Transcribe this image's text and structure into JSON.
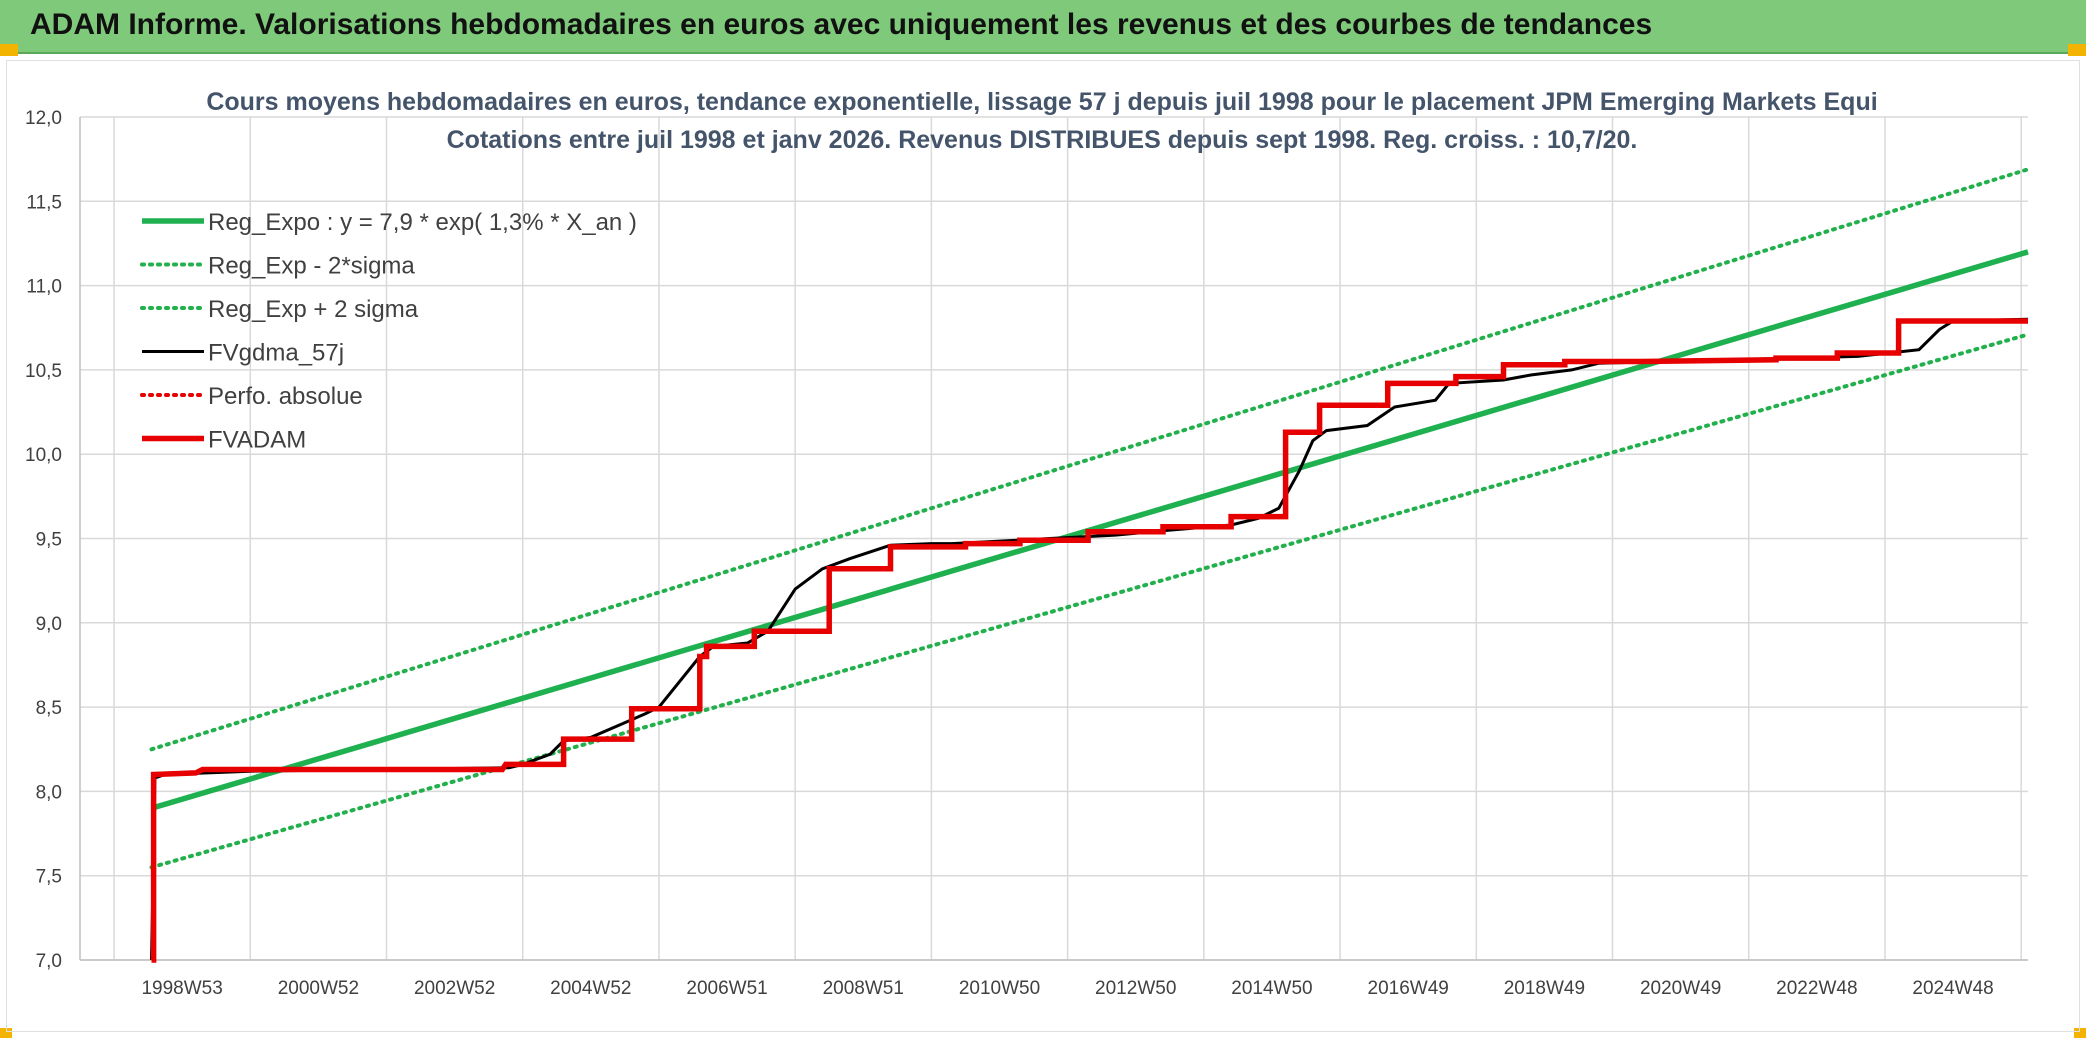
{
  "header": {
    "title": "ADAM Informe. Valorisations hebdomadaires en euros avec uniquement les revenus et des courbes de tendances"
  },
  "colors": {
    "header_bg": "#7fc97a",
    "trend_green": "#1fb050",
    "band_green": "#22b04c",
    "fv_black": "#000000",
    "adam_red": "#e60000",
    "perfo_red": "#e60000",
    "grid": "#d9d9d9"
  },
  "chart_data": {
    "type": "line",
    "title": [
      "Cours moyens hebdomadaires en euros, tendance exponentielle, lissage 57 j depuis juil 1998 pour le placement JPM Emerging Markets Equi",
      "Cotations entre juil 1998 et janv 2026. Revenus DISTRIBUES depuis sept 1998. Reg. croiss. : 10,7/20."
    ],
    "xlabel": "",
    "ylabel": "",
    "ylim": [
      7.0,
      12.0
    ],
    "xlim": [
      1997.5,
      2026.1
    ],
    "grid": true,
    "legend_position": "top-left",
    "y_ticks": [
      {
        "value": 7.0,
        "label": "7,0"
      },
      {
        "value": 7.5,
        "label": "7,5"
      },
      {
        "value": 8.0,
        "label": "8,0"
      },
      {
        "value": 8.5,
        "label": "8,5"
      },
      {
        "value": 9.0,
        "label": "9,0"
      },
      {
        "value": 9.5,
        "label": "9,5"
      },
      {
        "value": 10.0,
        "label": "10,0"
      },
      {
        "value": 10.5,
        "label": "10,5"
      },
      {
        "value": 11.0,
        "label": "11,0"
      },
      {
        "value": 11.5,
        "label": "11,5"
      },
      {
        "value": 12.0,
        "label": "12,0"
      }
    ],
    "x_ticks": [
      {
        "value": 1999.0,
        "label": "1998W53"
      },
      {
        "value": 2001.0,
        "label": "2000W52"
      },
      {
        "value": 2003.0,
        "label": "2002W52"
      },
      {
        "value": 2005.0,
        "label": "2004W52"
      },
      {
        "value": 2007.0,
        "label": "2006W51"
      },
      {
        "value": 2009.0,
        "label": "2008W51"
      },
      {
        "value": 2011.0,
        "label": "2010W50"
      },
      {
        "value": 2013.0,
        "label": "2012W50"
      },
      {
        "value": 2015.0,
        "label": "2014W50"
      },
      {
        "value": 2017.0,
        "label": "2016W49"
      },
      {
        "value": 2019.0,
        "label": "2018W49"
      },
      {
        "value": 2021.0,
        "label": "2020W49"
      },
      {
        "value": 2023.0,
        "label": "2022W48"
      },
      {
        "value": 2025.0,
        "label": "2024W48"
      }
    ],
    "x_minor_ticks": [
      1998.0,
      2000.0,
      2002.0,
      2004.0,
      2006.0,
      2008.0,
      2010.0,
      2012.0,
      2014.0,
      2016.0,
      2018.0,
      2020.0,
      2022.0,
      2024.0,
      2026.0
    ],
    "series": [
      {
        "name": "Reg_Expo : y = 7,9 * exp( 1,3% *  X_an )",
        "style": "solid-thick",
        "color": "#1fb050",
        "x": [
          1998.55,
          2026.1
        ],
        "y": [
          7.9,
          11.2
        ]
      },
      {
        "name": "Reg_Exp - 2*sigma",
        "style": "dotted",
        "color": "#22b04c",
        "x": [
          1998.55,
          2026.1
        ],
        "y": [
          7.55,
          10.71
        ]
      },
      {
        "name": "Reg_Exp + 2 sigma",
        "style": "dotted",
        "color": "#22b04c",
        "x": [
          1998.55,
          2026.1
        ],
        "y": [
          8.25,
          11.69
        ]
      },
      {
        "name": "FVgdma_57j",
        "style": "solid",
        "color": "#000000",
        "x": [
          1998.55,
          1998.6,
          1998.75,
          2000.0,
          2003.8,
          2004.0,
          2004.4,
          2004.6,
          2005.0,
          2005.8,
          2006.0,
          2006.6,
          2006.8,
          2007.3,
          2007.6,
          2008.0,
          2008.4,
          2008.8,
          2009.4,
          2010.0,
          2010.3,
          2012.7,
          2013.5,
          2014.4,
          2014.8,
          2015.1,
          2015.4,
          2015.6,
          2015.8,
          2016.4,
          2016.8,
          2017.4,
          2017.6,
          2018.4,
          2018.8,
          2019.4,
          2019.8,
          2023.6,
          2024.5,
          2024.8,
          2025.0,
          2026.1
        ],
        "y": [
          7.0,
          8.08,
          8.1,
          8.12,
          8.14,
          8.16,
          8.22,
          8.3,
          8.32,
          8.46,
          8.5,
          8.8,
          8.86,
          8.88,
          8.95,
          9.2,
          9.32,
          9.38,
          9.46,
          9.47,
          9.47,
          9.52,
          9.55,
          9.58,
          9.62,
          9.68,
          9.9,
          10.08,
          10.14,
          10.17,
          10.28,
          10.32,
          10.42,
          10.44,
          10.47,
          10.5,
          10.54,
          10.58,
          10.62,
          10.74,
          10.79,
          10.8
        ]
      },
      {
        "name": "Perfo. absolue",
        "style": "dotted",
        "color": "#e60000",
        "x": [],
        "y": []
      },
      {
        "name": "FVADAM",
        "style": "solid-thick",
        "color": "#e60000",
        "x": [
          1998.55,
          1998.58,
          1998.58,
          1999.2,
          1999.3,
          2001.0,
          2002.0,
          2003.7,
          2003.75,
          2004.6,
          2004.6,
          2005.6,
          2005.6,
          2006.6,
          2006.6,
          2006.7,
          2006.7,
          2007.4,
          2007.4,
          2008.5,
          2008.5,
          2009.4,
          2009.4,
          2010.5,
          2010.5,
          2011.3,
          2011.3,
          2012.3,
          2012.3,
          2013.4,
          2013.4,
          2014.4,
          2014.4,
          2015.2,
          2015.2,
          2015.7,
          2015.7,
          2016.7,
          2016.7,
          2017.7,
          2017.7,
          2018.4,
          2018.4,
          2019.3,
          2019.3,
          2020.4,
          2022.4,
          2022.4,
          2023.3,
          2023.3,
          2024.2,
          2024.2,
          2026.1
        ],
        "y": [
          7.0,
          7.0,
          8.1,
          8.11,
          8.13,
          8.13,
          8.13,
          8.13,
          8.16,
          8.16,
          8.31,
          8.31,
          8.49,
          8.49,
          8.8,
          8.8,
          8.86,
          8.86,
          8.95,
          8.95,
          9.32,
          9.32,
          9.45,
          9.45,
          9.47,
          9.47,
          9.49,
          9.49,
          9.54,
          9.54,
          9.57,
          9.57,
          9.63,
          9.63,
          10.13,
          10.13,
          10.29,
          10.29,
          10.42,
          10.42,
          10.46,
          10.46,
          10.53,
          10.53,
          10.55,
          10.55,
          10.56,
          10.57,
          10.57,
          10.6,
          10.6,
          10.79,
          10.79
        ]
      }
    ],
    "legend": [
      {
        "label": "Reg_Expo : y = 7,9 * exp( 1,3% *  X_an )",
        "color": "#1fb050",
        "style": "solid-thick"
      },
      {
        "label": "Reg_Exp - 2*sigma",
        "color": "#22b04c",
        "style": "dotted"
      },
      {
        "label": "Reg_Exp + 2 sigma",
        "color": "#22b04c",
        "style": "dotted"
      },
      {
        "label": "FVgdma_57j",
        "color": "#000000",
        "style": "solid"
      },
      {
        "label": "Perfo. absolue",
        "color": "#e60000",
        "style": "dotted"
      },
      {
        "label": "FVADAM",
        "color": "#e60000",
        "style": "solid-thick"
      }
    ]
  }
}
